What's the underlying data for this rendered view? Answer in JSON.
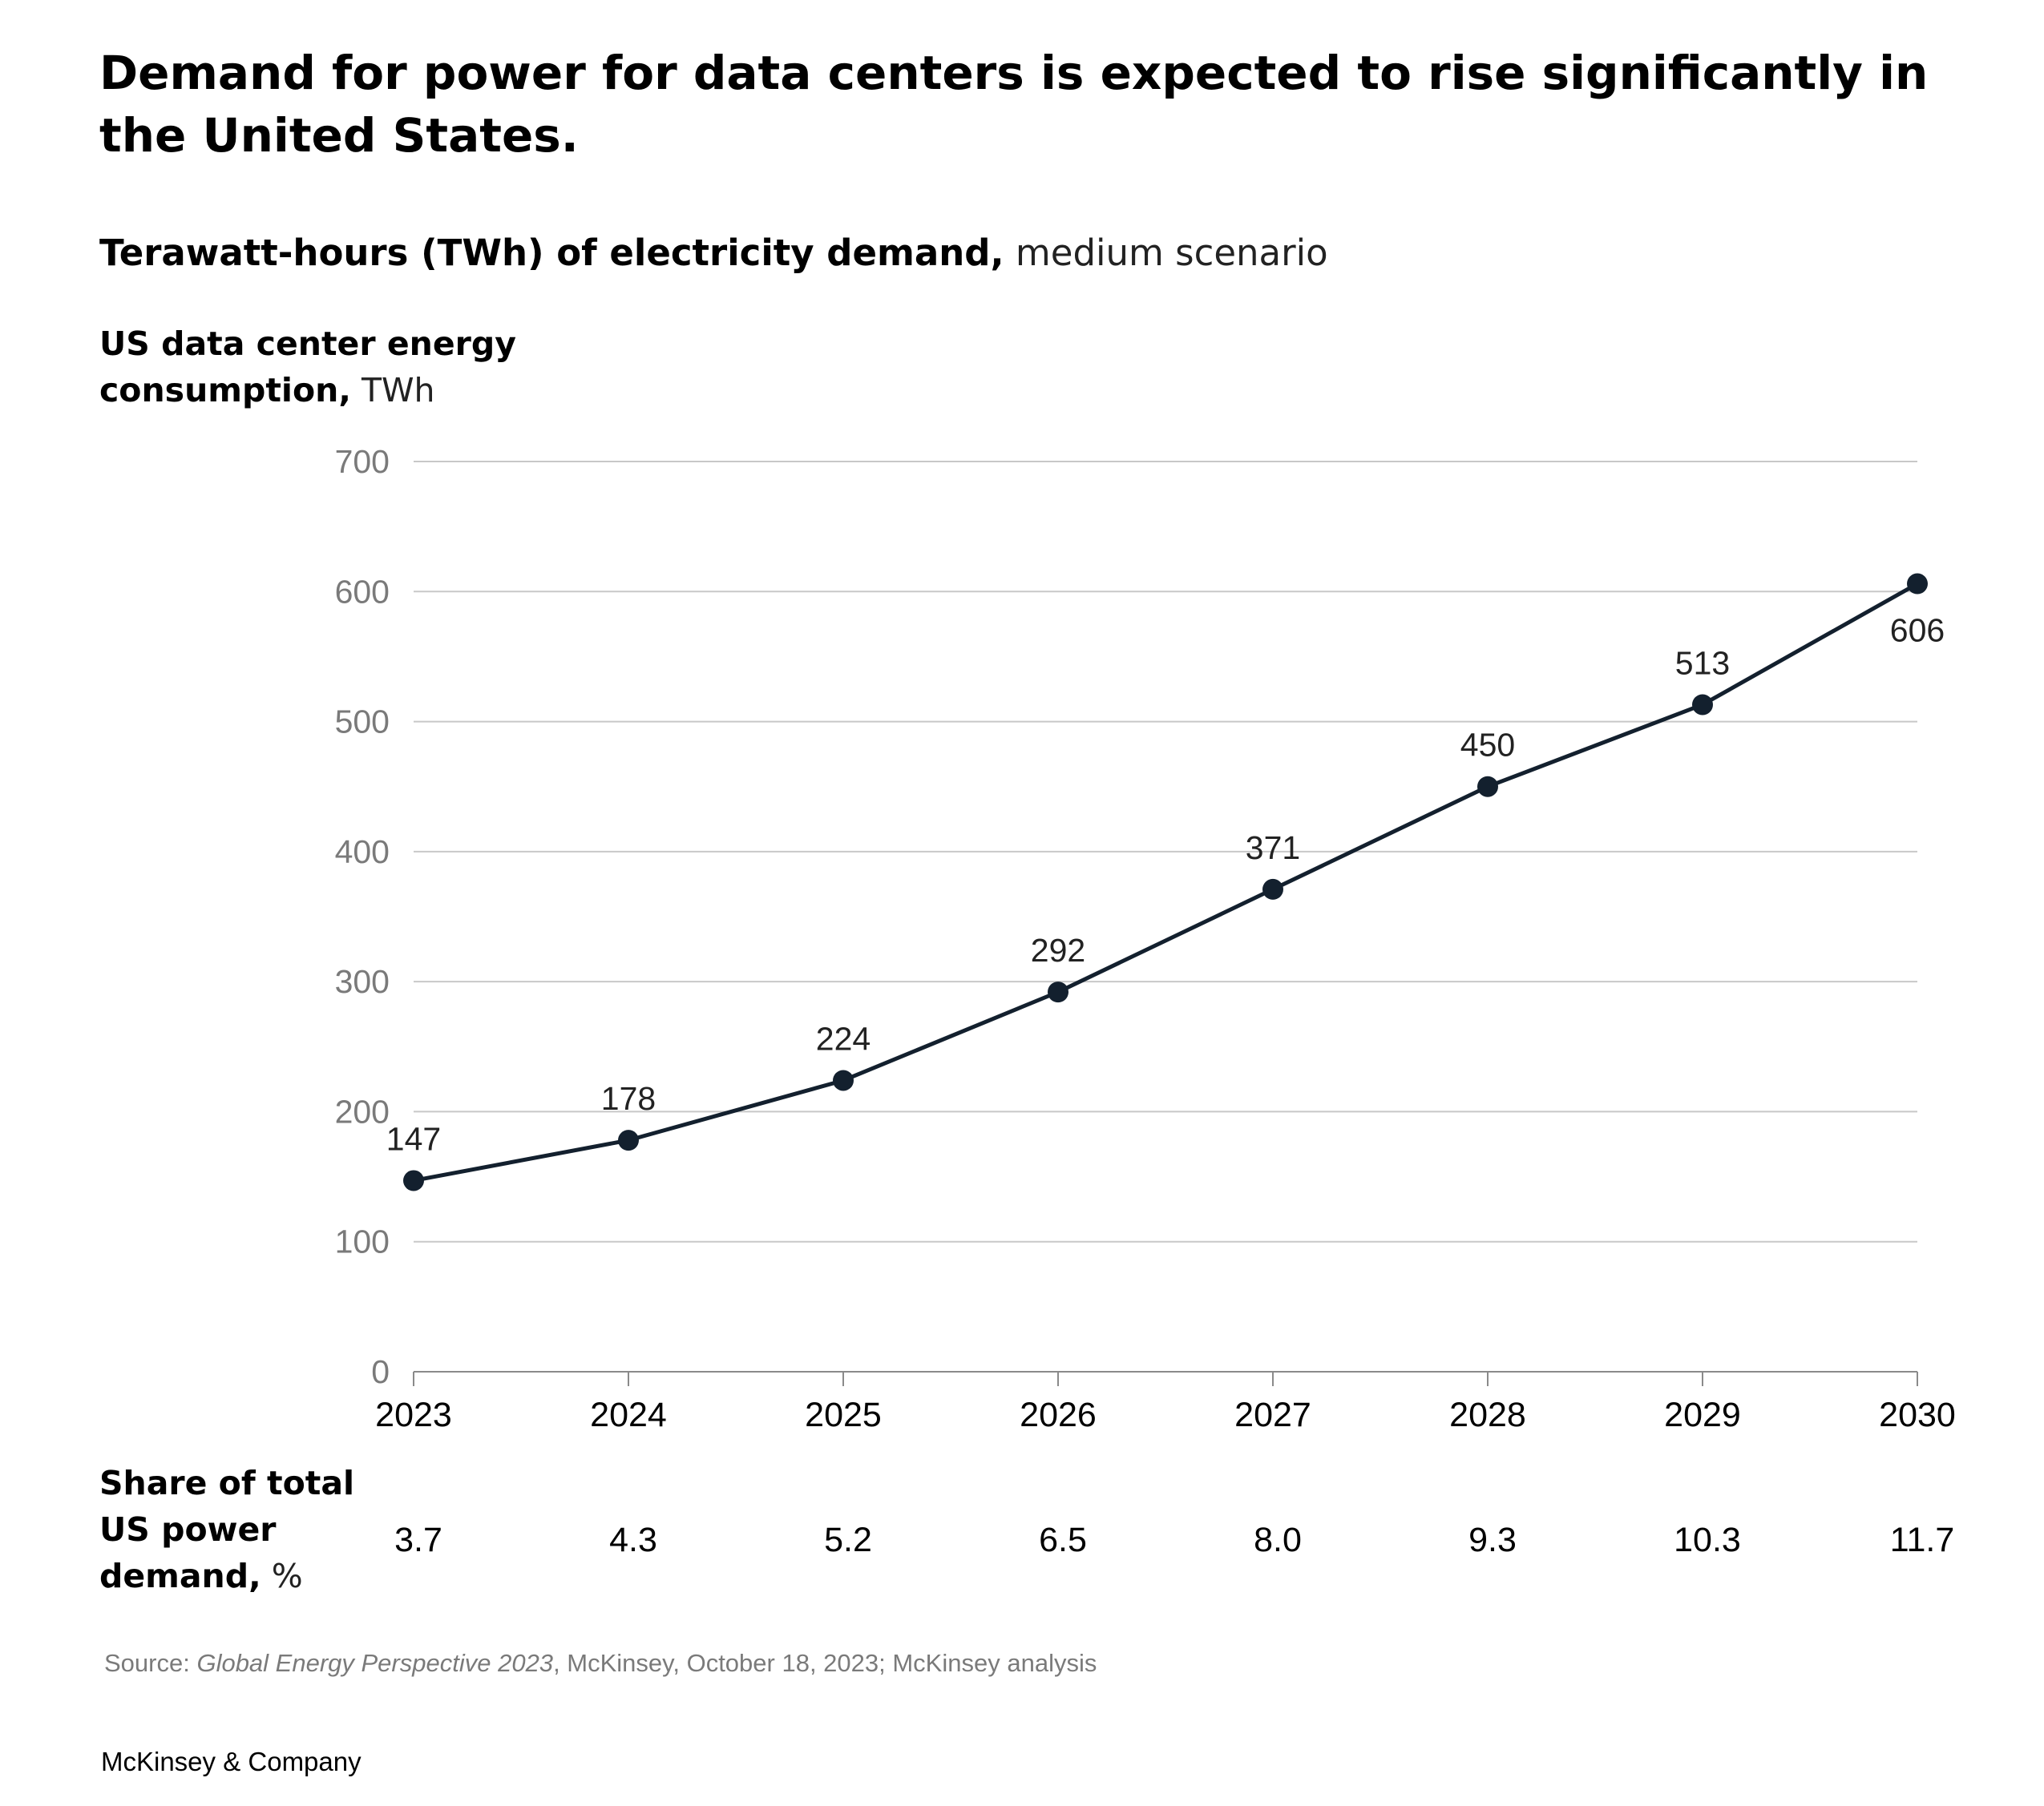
{
  "chart_data": {
    "type": "line",
    "title": "Demand for power for data centers is expected to rise significantly in the United States.",
    "subtitle_bold": "Terawatt-hours (TWh) of electricity demand,",
    "subtitle_rest": "medium scenario",
    "ylabel_bold_1": "US data center energy",
    "ylabel_bold_2": "consumption,",
    "ylabel_unit": "TWh",
    "x": [
      "2023",
      "2024",
      "2025",
      "2026",
      "2027",
      "2028",
      "2029",
      "2030"
    ],
    "series": [
      {
        "values": [
          147,
          178,
          224,
          292,
          371,
          450,
          513,
          606
        ]
      }
    ],
    "data_labels": [
      "147",
      "178",
      "224",
      "292",
      "371",
      "450",
      "513",
      "606"
    ],
    "y_ticks": [
      "0",
      "100",
      "200",
      "300",
      "400",
      "500",
      "600",
      "700"
    ],
    "ylim": [
      0,
      700
    ],
    "grid": true,
    "line_color": "#13202e",
    "share": {
      "label_line1": "Share of total",
      "label_line2": "US power",
      "label_line3_bold": "demand,",
      "label_unit": "%",
      "values": [
        "3.7",
        "4.3",
        "5.2",
        "6.5",
        "8.0",
        "9.3",
        "10.3",
        "11.7"
      ]
    }
  },
  "source": {
    "prefix": "Source: ",
    "italic": "Global Energy Perspective 2023",
    "rest": ", McKinsey, October 18, 2023; McKinsey analysis"
  },
  "brand": "McKinsey & Company"
}
